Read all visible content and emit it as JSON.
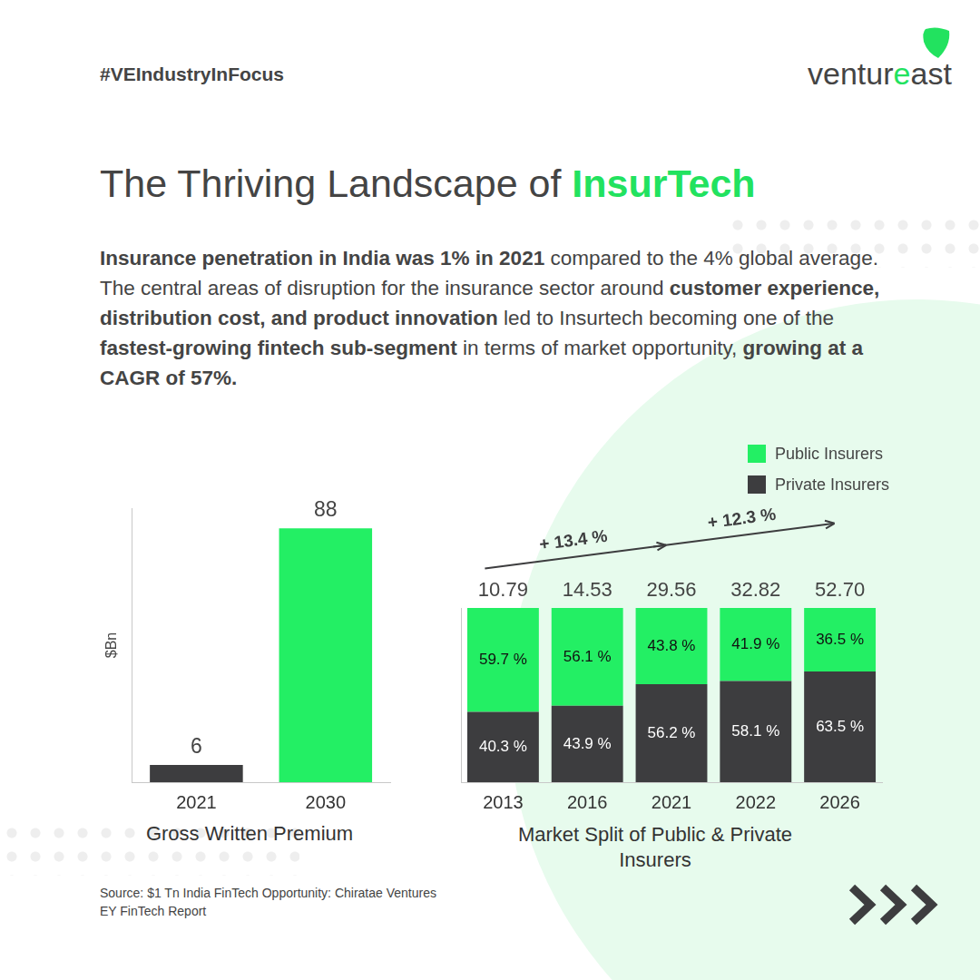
{
  "header": {
    "hashtag": "#VEIndustryInFocus",
    "logo": "ventureast"
  },
  "title": [
    "The Thriving Landscape of",
    "InsurTech"
  ],
  "text": [
    {
      "text": "Insurance penetration in India was 1% in 2021",
      "bold": true
    },
    {
      "text": " compared to the 4% global average. The central areas of disruption for the insurance sector around ",
      "bold": false
    },
    {
      "text": "customer experience, distribution cost, and product innovation",
      "bold": true
    },
    {
      "text": " led to Insurtech becoming one of the ",
      "bold": false
    },
    {
      "text": "fastest-growing fintech sub-segment",
      "bold": true
    },
    {
      "text": " in terms of market opportunity, ",
      "bold": false
    },
    {
      "text": "growing at a CAGR of 57%.",
      "bold": true
    }
  ],
  "chart_data": [
    {
      "type": "bar",
      "title": "Gross Written Premium",
      "ylabel": "$Bn",
      "categories": [
        "2021",
        "2030"
      ],
      "values": [
        6,
        88
      ],
      "colors": [
        "#3d3d3f",
        "#23ef64"
      ],
      "ylim": [
        0,
        95
      ],
      "grid": false,
      "data_labels": true,
      "tick_labels": "x"
    },
    {
      "type": "bar",
      "title": "Market Split of Public & Private Insurers",
      "categories": [
        "2013",
        "2016",
        "2021",
        "2022",
        "2026"
      ],
      "stacked": true,
      "series": [
        {
          "name": "Public Insurers",
          "color": "#23ef64",
          "values": [
            59.7,
            56.1,
            43.8,
            41.9,
            36.5
          ],
          "value_labels": [
            "59.7 %",
            "56.1 %",
            "43.8 %",
            "41.9 %",
            "36.5 %"
          ]
        },
        {
          "name": "Private Insurers",
          "color": "#3d3d3f",
          "values": [
            40.3,
            43.9,
            56.2,
            58.1,
            63.5
          ],
          "value_labels": [
            "40.3 %",
            "43.9 %",
            "56.2 %",
            "58.1 %",
            "63.5 %"
          ]
        }
      ],
      "totals": [
        10.79,
        14.53,
        29.56,
        32.82,
        52.7
      ],
      "total_labels": [
        "10.79",
        "14.53",
        "29.56",
        "32.82",
        "52.70"
      ],
      "annotations": [
        {
          "text": "+ 13.4 %",
          "from": "2013",
          "to": "2021"
        },
        {
          "text": "+ 12.3 %",
          "from": "2021",
          "to": "2026"
        }
      ],
      "ylim": [
        0,
        100
      ],
      "grid": false,
      "data_labels": true,
      "legend": "top-right",
      "tick_labels": "x"
    }
  ],
  "source": [
    "Source: $1 Tn India FinTech Opportunity: Chiratae Ventures",
    "EY FinTech Report"
  ]
}
